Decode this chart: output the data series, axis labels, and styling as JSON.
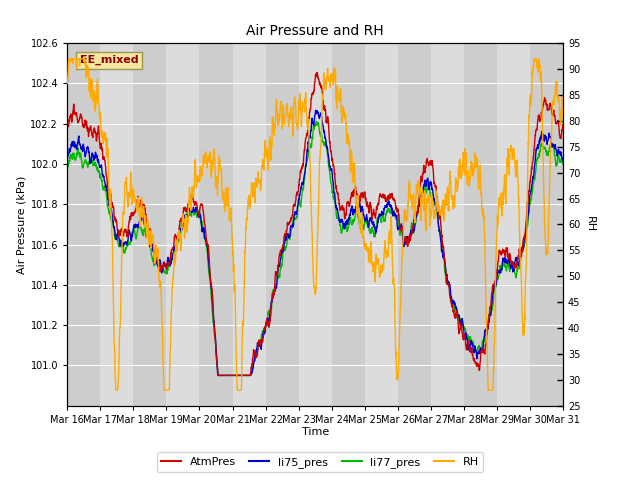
{
  "title": "Air Pressure and RH",
  "xlabel": "Time",
  "ylabel_left": "Air Pressure (kPa)",
  "ylabel_right": "RH",
  "annotation": "EE_mixed",
  "ylim_left": [
    100.8,
    102.6
  ],
  "ylim_right": [
    25,
    95
  ],
  "yticks_left": [
    101.0,
    101.2,
    101.4,
    101.6,
    101.8,
    102.0,
    102.2,
    102.4,
    102.6
  ],
  "yticks_right": [
    25,
    30,
    35,
    40,
    45,
    50,
    55,
    60,
    65,
    70,
    75,
    80,
    85,
    90,
    95
  ],
  "xtick_labels": [
    "Mar 16",
    "Mar 17",
    "Mar 18",
    "Mar 19",
    "Mar 20",
    "Mar 21",
    "Mar 22",
    "Mar 23",
    "Mar 24",
    "Mar 25",
    "Mar 26",
    "Mar 27",
    "Mar 28",
    "Mar 29",
    "Mar 30",
    "Mar 31"
  ],
  "n_points": 2000,
  "colors": {
    "AtmPres": "#cc0000",
    "li75_pres": "#0000cc",
    "li77_pres": "#00bb00",
    "RH": "#ffaa00"
  },
  "plot_bg": "#dcdcdc",
  "band_color": "#c8c8c8",
  "grid_color": "#ffffff",
  "fig_bg": "#ffffff"
}
